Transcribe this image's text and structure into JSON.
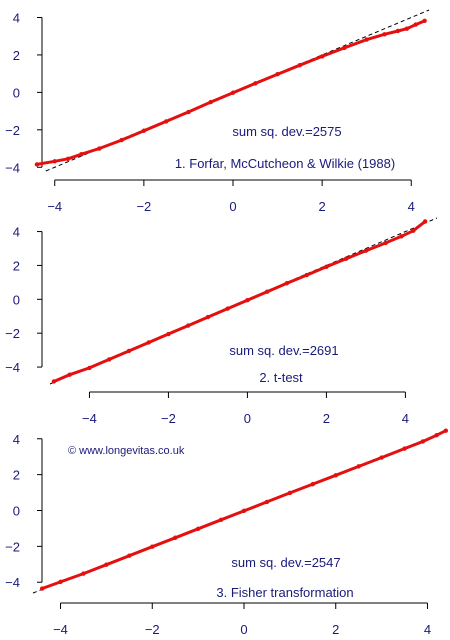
{
  "credit": "© www.longevitas.co.uk",
  "chart_data": [
    {
      "type": "scatter",
      "title": "1. Forfar, McCutcheon & Wilkie (1988)",
      "annotation": "sum sq. dev.=2575",
      "xlim": [
        -4.6,
        4.6
      ],
      "ylim": [
        -4.2,
        4.4
      ],
      "x_ticks": [
        -4,
        -2,
        0,
        2,
        4
      ],
      "y_ticks": [
        -4,
        -2,
        0,
        2,
        4
      ],
      "reference_line": "y = x (dashed)",
      "series_color": "#e41010",
      "x": [
        -4.4,
        -4.0,
        -3.7,
        -3.4,
        -3.0,
        -2.5,
        -2.0,
        -1.5,
        -1.0,
        -0.5,
        0.0,
        0.5,
        1.0,
        1.5,
        2.0,
        2.5,
        3.0,
        3.4,
        3.7,
        3.9,
        4.1,
        4.3
      ],
      "y": [
        -3.85,
        -3.68,
        -3.55,
        -3.3,
        -3.0,
        -2.55,
        -2.05,
        -1.55,
        -1.05,
        -0.52,
        -0.02,
        0.48,
        0.97,
        1.45,
        1.92,
        2.38,
        2.82,
        3.1,
        3.28,
        3.4,
        3.62,
        3.82
      ]
    },
    {
      "type": "scatter",
      "title": "2. t-test",
      "annotation": "sum sq. dev.=2691",
      "xlim": [
        -5.1,
        4.8
      ],
      "ylim": [
        -5.0,
        4.8
      ],
      "x_ticks": [
        -4,
        -2,
        0,
        2,
        4
      ],
      "y_ticks": [
        -4,
        -2,
        0,
        2,
        4
      ],
      "reference_line": "y = x (dashed)",
      "series_color": "#e41010",
      "x": [
        -4.9,
        -4.5,
        -4.0,
        -3.5,
        -3.0,
        -2.5,
        -2.0,
        -1.5,
        -1.0,
        -0.5,
        0.0,
        0.5,
        1.0,
        1.5,
        2.0,
        2.5,
        3.0,
        3.5,
        3.9,
        4.2,
        4.5
      ],
      "y": [
        -4.85,
        -4.45,
        -4.05,
        -3.55,
        -3.05,
        -2.55,
        -2.05,
        -1.55,
        -1.05,
        -0.55,
        -0.05,
        0.45,
        0.95,
        1.43,
        1.92,
        2.4,
        2.87,
        3.33,
        3.72,
        4.05,
        4.6
      ]
    },
    {
      "type": "scatter",
      "title": "3. Fisher transformation",
      "annotation": "sum sq. dev.=2547",
      "xlim": [
        -4.6,
        4.6
      ],
      "ylim": [
        -4.6,
        4.6
      ],
      "x_ticks": [
        -4,
        -2,
        0,
        2,
        4
      ],
      "y_ticks": [
        -4,
        -2,
        0,
        2,
        4
      ],
      "reference_line": "y = x (dashed)",
      "series_color": "#e41010",
      "x": [
        -4.4,
        -4.0,
        -3.5,
        -3.0,
        -2.5,
        -2.0,
        -1.5,
        -1.0,
        -0.5,
        0.0,
        0.5,
        1.0,
        1.5,
        2.0,
        2.5,
        3.0,
        3.5,
        3.9,
        4.2,
        4.4
      ],
      "y": [
        -4.35,
        -3.98,
        -3.52,
        -3.02,
        -2.52,
        -2.02,
        -1.52,
        -1.02,
        -0.52,
        -0.02,
        0.48,
        0.98,
        1.47,
        1.96,
        2.46,
        2.95,
        3.45,
        3.85,
        4.2,
        4.45
      ]
    }
  ]
}
